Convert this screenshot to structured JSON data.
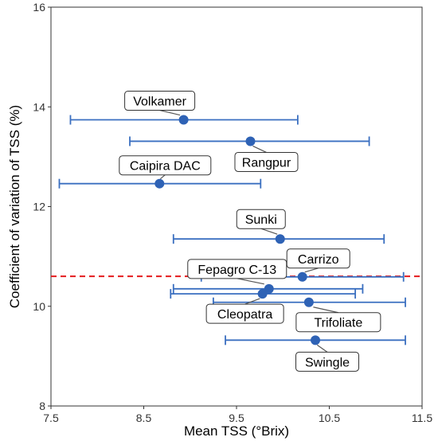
{
  "chart_data": {
    "type": "scatter",
    "title": "",
    "xlabel": "Mean TSS (°Brix)",
    "ylabel": "Coefficient of variation of TSS (%)",
    "xlim": [
      7.5,
      11.5
    ],
    "ylim": [
      8,
      16
    ],
    "xticks": [
      "7.5",
      "8.5",
      "9.5",
      "10.5",
      "11.5"
    ],
    "yticks": [
      "8",
      "10",
      "12",
      "14",
      "16"
    ],
    "grid": false,
    "reference_line": {
      "y": 10.6,
      "style": "dashed",
      "color": "#e41a1c"
    },
    "colors": {
      "point": "#2e62b5",
      "errorbar": "#3a6fc0"
    },
    "points": [
      {
        "name": "Volkamer",
        "x": 8.93,
        "y": 13.74,
        "x_low": 7.71,
        "x_high": 10.16
      },
      {
        "name": "Rangpur",
        "x": 9.65,
        "y": 13.31,
        "x_low": 8.35,
        "x_high": 10.93
      },
      {
        "name": "Caipira DAC",
        "x": 8.67,
        "y": 12.46,
        "x_low": 7.59,
        "x_high": 9.76
      },
      {
        "name": "Sunki",
        "x": 9.97,
        "y": 11.35,
        "x_low": 8.82,
        "x_high": 11.09
      },
      {
        "name": "Carrizo",
        "x": 10.21,
        "y": 10.59,
        "x_low": 9.12,
        "x_high": 11.3
      },
      {
        "name": "Fepagro C-13",
        "x": 9.85,
        "y": 10.35,
        "x_low": 8.82,
        "x_high": 10.86
      },
      {
        "name": "Cleopatra",
        "x": 9.78,
        "y": 10.25,
        "x_low": 8.79,
        "x_high": 10.78
      },
      {
        "name": "Trifoliate",
        "x": 10.28,
        "y": 10.08,
        "x_low": 9.25,
        "x_high": 11.32
      },
      {
        "name": "Swingle",
        "x": 10.35,
        "y": 9.32,
        "x_low": 9.38,
        "x_high": 11.32
      }
    ]
  }
}
